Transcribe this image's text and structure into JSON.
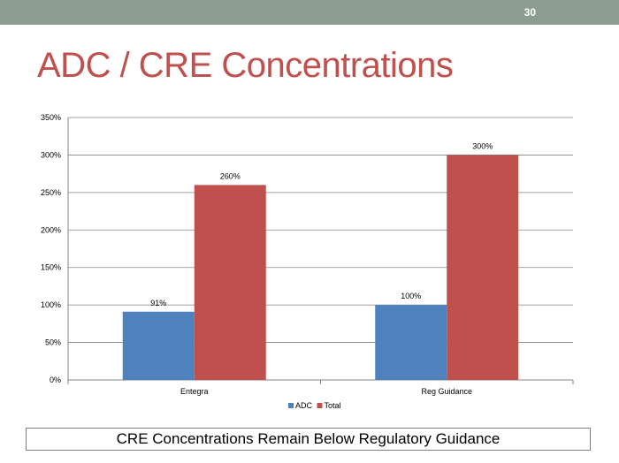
{
  "slide": {
    "number": "30",
    "title": "ADC / CRE Concentrations",
    "footer": "CRE Concentrations Remain Below Regulatory Guidance"
  },
  "colors": {
    "topbar": "#8c9c8f",
    "title": "#c0504d",
    "adc": "#4f81bd",
    "total": "#c0504d"
  },
  "chart_data": {
    "type": "bar",
    "categories": [
      "Entegra",
      "Reg Guidance"
    ],
    "series": [
      {
        "name": "ADC",
        "values": [
          91,
          100
        ],
        "labels": [
          "91%",
          "100%"
        ],
        "color": "#4f81bd"
      },
      {
        "name": "Total",
        "values": [
          260,
          300
        ],
        "labels": [
          "260%",
          "300%"
        ],
        "color": "#c0504d"
      }
    ],
    "ylim": [
      0,
      350
    ],
    "yticks": [
      0,
      50,
      100,
      150,
      200,
      250,
      300,
      350
    ],
    "ytick_labels": [
      "0%",
      "50%",
      "100%",
      "150%",
      "200%",
      "250%",
      "300%",
      "350%"
    ],
    "grid": true,
    "legend": "bottom"
  }
}
